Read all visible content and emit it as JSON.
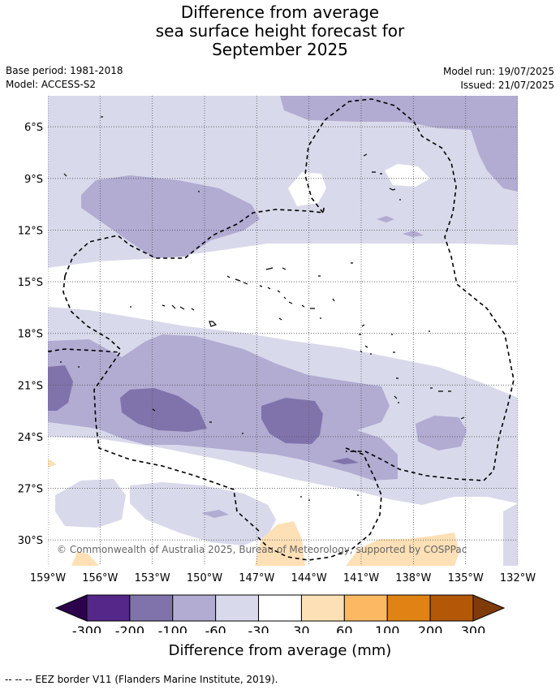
{
  "title_lines": [
    "Difference from average",
    "sea surface height forecast for",
    "September 2025"
  ],
  "meta": {
    "base_period": "Base period: 1981-2018",
    "model": "Model: ACCESS-S2",
    "model_run": "Model run: 19/07/2025",
    "issued": "Issued: 21/07/2025"
  },
  "map": {
    "lon_range": [
      -159,
      -132
    ],
    "lat_range": [
      -31.5,
      -4.2
    ],
    "lon_ticks": [
      "159°W",
      "156°W",
      "153°W",
      "150°W",
      "147°W",
      "144°W",
      "141°W",
      "138°W",
      "135°W",
      "132°W"
    ],
    "lat_ticks": [
      "6°S",
      "9°S",
      "12°S",
      "15°S",
      "18°S",
      "21°S",
      "24°S",
      "27°S",
      "30°S"
    ],
    "copyright": "© Commonwealth of Australia 2025, Bureau of Meteorology, supported by COSPPac",
    "grid": "dotted"
  },
  "colorbar": {
    "title": "Difference from average (mm)",
    "labels": [
      "-300",
      "-200",
      "-100",
      "-60",
      "-30",
      "30",
      "60",
      "100",
      "200",
      "300"
    ],
    "colors": [
      "#2d004b",
      "#542788",
      "#8073ac",
      "#b2abd2",
      "#d8daeb",
      "#ffffff",
      "#fee0b6",
      "#fdb863",
      "#e08214",
      "#b35806",
      "#7f3b08"
    ],
    "extend": "both"
  },
  "footnote": "--  --  -- EEZ border V11 (Flanders Marine Institute, 2019)."
}
